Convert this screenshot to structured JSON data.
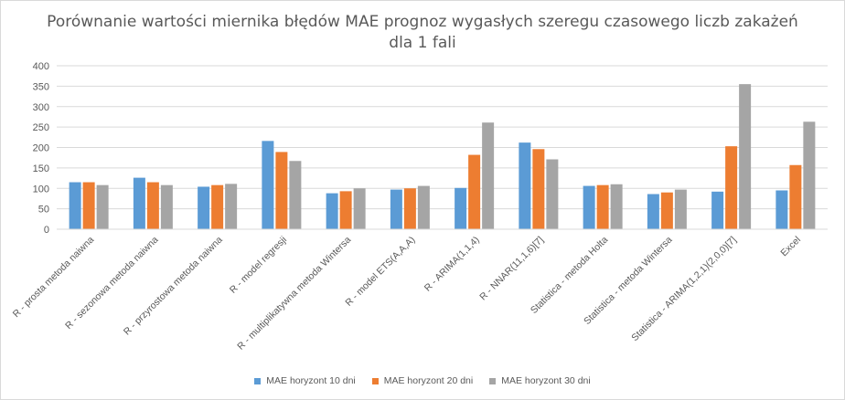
{
  "chart_data": {
    "type": "bar",
    "title_line1": "Porównanie wartości miernika błędów MAE prognoz wygasłych szeregu czasowego liczb zakażeń",
    "title_line2": "dla 1 fali",
    "ylim": [
      0,
      400
    ],
    "yticks": [
      0,
      50,
      100,
      150,
      200,
      250,
      300,
      350,
      400
    ],
    "grid": true,
    "legend_position": "bottom",
    "categories": [
      "R - prosta metoda naiwna",
      "R - sezonowa metoda naiwna",
      "R - przyrostowa metoda naiwna",
      "R - model regresji",
      "R - multiplikatywna metoda Wintersa",
      "R - model ETS(A,A,A)",
      "R - ARIMA(1,1,4)",
      "R - NNAR(11,1,6)[7]",
      "Statistica - metoda Holta",
      "Statistica - metoda Wintersa",
      "Statistica - ARIMA(1,2,1)(2,0,0)[7]",
      "Excel"
    ],
    "series": [
      {
        "name": "MAE horyzont 10 dni",
        "color": "#5b9bd5",
        "values": [
          115,
          126,
          104,
          216,
          88,
          97,
          101,
          212,
          106,
          86,
          92,
          95
        ]
      },
      {
        "name": "MAE horyzont 20 dni",
        "color": "#ed7d31",
        "values": [
          115,
          115,
          108,
          189,
          93,
          100,
          182,
          196,
          108,
          90,
          203,
          157
        ]
      },
      {
        "name": "MAE horyzont 30 dni",
        "color": "#a5a5a5",
        "values": [
          108,
          108,
          111,
          167,
          100,
          106,
          261,
          171,
          110,
          97,
          355,
          263
        ]
      }
    ]
  }
}
